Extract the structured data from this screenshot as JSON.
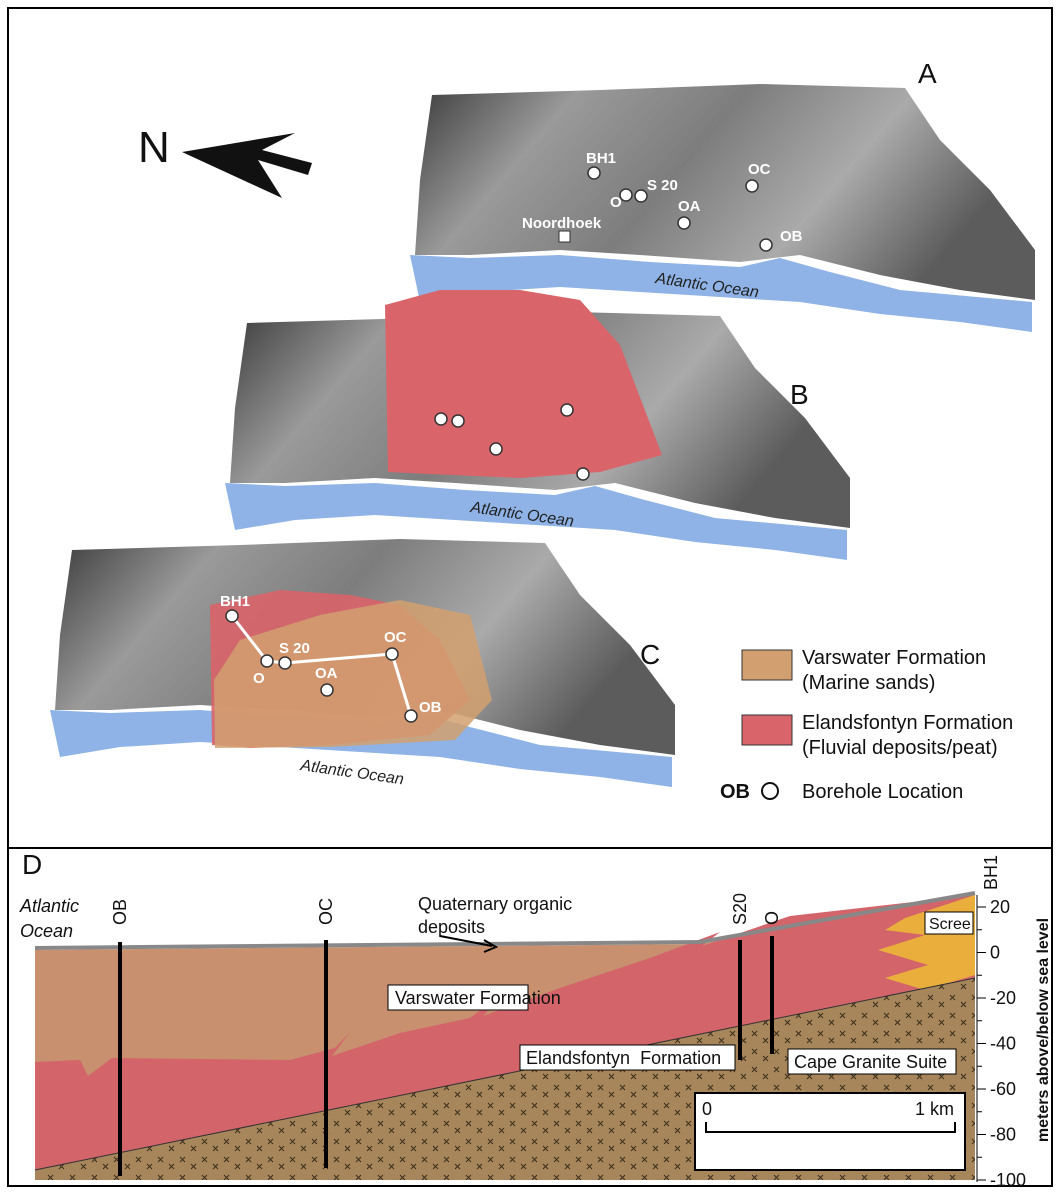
{
  "north_label": "N",
  "map_a": {
    "label": "A",
    "town": "Noordhoek",
    "ocean": "Atlantic Ocean",
    "boreholes": [
      "BH1",
      "O",
      "S 20",
      "OA",
      "OC",
      "OB"
    ]
  },
  "map_b": {
    "label": "B",
    "ocean": "Atlantic Ocean"
  },
  "map_c": {
    "label": "C",
    "ocean": "Atlantic Ocean",
    "boreholes": [
      "BH1",
      "O",
      "S 20",
      "OA",
      "OC",
      "OB"
    ]
  },
  "legend": [
    {
      "title": "Varswater Formation",
      "note": "(Marine sands)"
    },
    {
      "title": "Elandsfontyn Formation",
      "note": "(Fluvial deposits/peat)"
    },
    {
      "symbol": "OB",
      "title": "Borehole Location"
    }
  ],
  "cross_section": {
    "label": "D",
    "ocean": [
      "Atlantic",
      "Ocean"
    ],
    "annotation": [
      "Quaternary organic",
      "deposits"
    ],
    "boreholes": [
      "OB",
      "OC",
      "S20",
      "O",
      "BH1"
    ],
    "units": [
      "Varswater Formation",
      "Elandsfontyn  Formation",
      "Cape Granite Suite",
      "Scree"
    ],
    "axis_label": "meters above/below sea level",
    "ticks": [
      20,
      0,
      -20,
      -40,
      -60,
      -80,
      -100
    ],
    "scale_bar": [
      "0",
      "1 km"
    ]
  }
}
